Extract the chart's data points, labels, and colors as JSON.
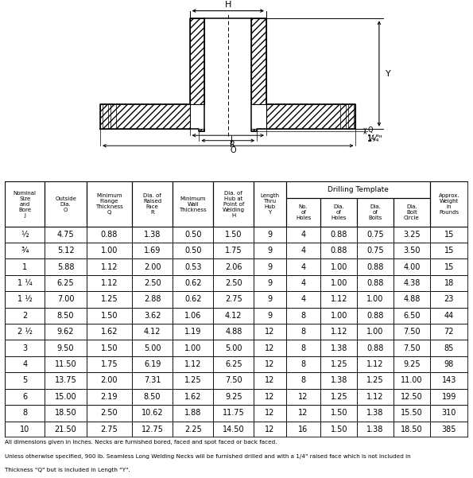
{
  "drilling_template_label": "Drilling Template",
  "header_labels": [
    "Nominal\nSize\nand\nBore\nJ",
    "Outside\nDia.\nO",
    "Minimum\nFlange\nThickness\nQ",
    "Dia. of\nRaised\nFace\nR",
    "Minimum\nWall\nThickness",
    "Dia. of\nHub at\nPoint of\nWelding\nH",
    "Length\nThru\nHub\nY",
    "No.\nof\nHoles",
    "Dia.\nof\nHoles",
    "Dia.\nof\nBolts",
    "Dia.\nBolt\nCircle",
    "Approx.\nWeight\nin\nPounds"
  ],
  "rows": [
    [
      "½",
      "4.75",
      "0.88",
      "1.38",
      "0.50",
      "1.50",
      "9",
      "4",
      "0.88",
      "0.75",
      "3.25",
      "15"
    ],
    [
      "¾",
      "5.12",
      "1.00",
      "1.69",
      "0.50",
      "1.75",
      "9",
      "4",
      "0.88",
      "0.75",
      "3.50",
      "15"
    ],
    [
      "1",
      "5.88",
      "1.12",
      "2.00",
      "0.53",
      "2.06",
      "9",
      "4",
      "1.00",
      "0.88",
      "4.00",
      "15"
    ],
    [
      "1 ¼",
      "6.25",
      "1.12",
      "2.50",
      "0.62",
      "2.50",
      "9",
      "4",
      "1.00",
      "0.88",
      "4.38",
      "18"
    ],
    [
      "1 ½",
      "7.00",
      "1.25",
      "2.88",
      "0.62",
      "2.75",
      "9",
      "4",
      "1.12",
      "1.00",
      "4.88",
      "23"
    ],
    [
      "2",
      "8.50",
      "1.50",
      "3.62",
      "1.06",
      "4.12",
      "9",
      "8",
      "1.00",
      "0.88",
      "6.50",
      "44"
    ],
    [
      "2 ½",
      "9.62",
      "1.62",
      "4.12",
      "1.19",
      "4.88",
      "12",
      "8",
      "1.12",
      "1.00",
      "7.50",
      "72"
    ],
    [
      "3",
      "9.50",
      "1.50",
      "5.00",
      "1.00",
      "5.00",
      "12",
      "8",
      "1.38",
      "0.88",
      "7.50",
      "85"
    ],
    [
      "4",
      "11.50",
      "1.75",
      "6.19",
      "1.12",
      "6.25",
      "12",
      "8",
      "1.25",
      "1.12",
      "9.25",
      "98"
    ],
    [
      "5",
      "13.75",
      "2.00",
      "7.31",
      "1.25",
      "7.50",
      "12",
      "8",
      "1.38",
      "1.25",
      "11.00",
      "143"
    ],
    [
      "6",
      "15.00",
      "2.19",
      "8.50",
      "1.62",
      "9.25",
      "12",
      "12",
      "1.25",
      "1.12",
      "12.50",
      "199"
    ],
    [
      "8",
      "18.50",
      "2.50",
      "10.62",
      "1.88",
      "11.75",
      "12",
      "12",
      "1.50",
      "1.38",
      "15.50",
      "310"
    ],
    [
      "10",
      "21.50",
      "2.75",
      "12.75",
      "2.25",
      "14.50",
      "12",
      "16",
      "1.50",
      "1.38",
      "18.50",
      "385"
    ]
  ],
  "footnote1": "All dimensions given in inches. Necks are furnished bored, faced and spot faced or back faced.",
  "footnote2": "Unless otherwise specified, 900 lb. Seamless Long Welding Necks will be furnished drilled and with a 1/4\" raised face which is not included in",
  "footnote3": "Thickness \"Q\" but is included in Length \"Y\".",
  "bg_color": "#ffffff"
}
